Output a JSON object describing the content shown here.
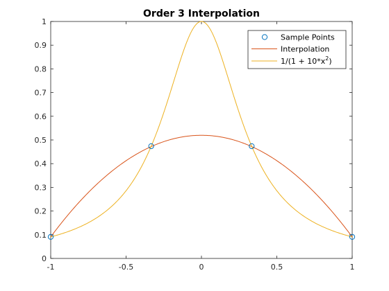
{
  "chart_data": {
    "type": "line",
    "title": "Order 3 Interpolation",
    "xlabel": "",
    "ylabel": "",
    "xlim": [
      -1,
      1
    ],
    "ylim": [
      0,
      1
    ],
    "grid": false,
    "legend_position": "top-right",
    "x_ticks": [
      -1,
      -0.5,
      0,
      0.5,
      1
    ],
    "x_tick_labels": [
      "-1",
      "-0.5",
      "0",
      "0.5",
      "1"
    ],
    "y_ticks": [
      0,
      0.1,
      0.2,
      0.3,
      0.4,
      0.5,
      0.6,
      0.7,
      0.8,
      0.9,
      1
    ],
    "y_tick_labels": [
      "0",
      "0.1",
      "0.2",
      "0.3",
      "0.4",
      "0.5",
      "0.6",
      "0.7",
      "0.8",
      "0.9",
      "1"
    ],
    "sample_points": {
      "name": "Sample Points",
      "color": "#0072BD",
      "x": [
        -1,
        -0.3333,
        0.3333,
        1
      ],
      "y": [
        0.0909,
        0.4737,
        0.4737,
        0.0909
      ]
    },
    "series": [
      {
        "name": "Interpolation",
        "color": "#D95319",
        "kind": "polynomial",
        "coefficients": [
          0.5197,
          0,
          -0.4288
        ],
        "x_range": [
          -1,
          1
        ]
      },
      {
        "name": "1/(1 + 10*x²)",
        "color": "#EDB120",
        "kind": "runge",
        "k": 10,
        "x_range": [
          -1,
          1
        ]
      }
    ],
    "legend": {
      "entries": [
        "Sample Points",
        "Interpolation",
        "1/(1 + 10*x"
      ],
      "superscript": "2",
      "suffix": ")"
    }
  }
}
